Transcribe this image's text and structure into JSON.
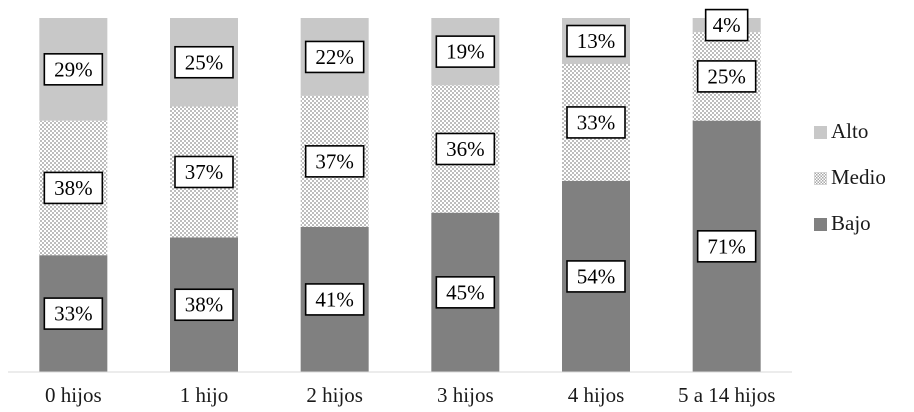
{
  "chart_data": {
    "type": "bar",
    "stacked": true,
    "percent_stacked": true,
    "categories": [
      "0 hijos",
      "1 hijo",
      "2 hijos",
      "3 hijos",
      "4 hijos",
      "5 a 14 hijos"
    ],
    "series": [
      {
        "name": "Bajo",
        "values": [
          33,
          38,
          41,
          45,
          54,
          71
        ],
        "labels": [
          "33%",
          "38%",
          "41%",
          "45%",
          "54%",
          "71%"
        ],
        "color": "#808080",
        "pattern": "solid"
      },
      {
        "name": "Medio",
        "values": [
          38,
          37,
          37,
          36,
          33,
          25
        ],
        "labels": [
          "38%",
          "37%",
          "37%",
          "36%",
          "33%",
          "25%"
        ],
        "color": "#d9d9d9",
        "pattern": "checker"
      },
      {
        "name": "Alto",
        "values": [
          29,
          25,
          22,
          19,
          13,
          4
        ],
        "labels": [
          "29%",
          "25%",
          "22%",
          "19%",
          "13%",
          "4%"
        ],
        "color": "#c8c8c8",
        "pattern": "solid"
      }
    ],
    "legend": {
      "position": "right",
      "order": [
        "Alto",
        "Medio",
        "Bajo"
      ]
    },
    "ylim": [
      0,
      100
    ],
    "grid": false,
    "title": "",
    "xlabel": "",
    "ylabel": ""
  }
}
